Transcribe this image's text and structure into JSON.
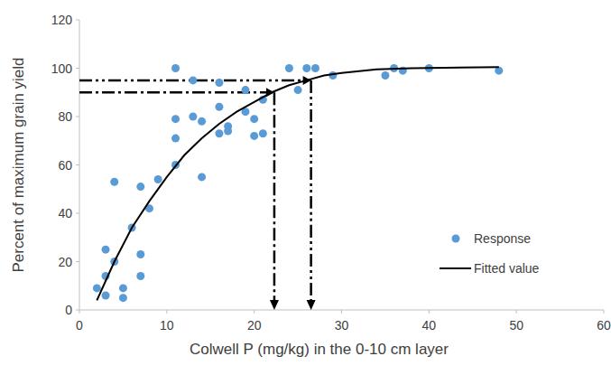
{
  "chart_data": {
    "type": "scatter",
    "x_label": "Colwell P (mg/kg) in the 0-10 cm layer",
    "y_label": "Percent of maximum grain yield",
    "xlim": [
      0,
      60
    ],
    "xticks": [
      0,
      10,
      20,
      30,
      40,
      50,
      60
    ],
    "ylim": [
      0,
      120
    ],
    "yticks": [
      0,
      20,
      40,
      60,
      80,
      100,
      120
    ],
    "grid": false,
    "legend": "lower right",
    "series": [
      {
        "name": "Response",
        "type": "scatter",
        "color": "#5b9bd5",
        "marker": "circle",
        "x": [
          2,
          3,
          3,
          3,
          4,
          4,
          5,
          5,
          6,
          7,
          7,
          7,
          8,
          9,
          11,
          11,
          11,
          11,
          13,
          13,
          14,
          14,
          16,
          16,
          16,
          17,
          17,
          19,
          19,
          20,
          20,
          21,
          21,
          24,
          25,
          26,
          27,
          29,
          35,
          36,
          37,
          40,
          48
        ],
        "values": [
          9,
          25,
          14,
          6,
          20,
          53,
          5,
          9,
          34,
          51,
          23,
          14,
          42,
          54,
          100,
          79,
          71,
          60,
          95,
          80,
          78,
          55,
          94,
          84,
          73,
          76,
          74,
          91,
          82,
          79,
          72,
          87,
          73,
          100,
          91,
          100,
          100,
          97,
          97,
          100,
          99,
          100,
          99
        ]
      },
      {
        "name": "Fitted value",
        "type": "line",
        "color": "#000000",
        "line_style": "solid",
        "x": [
          2,
          4,
          6,
          8,
          10,
          12,
          14,
          16,
          18,
          20,
          22,
          24,
          26,
          28,
          30,
          34,
          38,
          48
        ],
        "values": [
          4,
          20,
          34,
          45,
          55,
          64,
          71,
          77,
          82,
          86,
          90,
          93,
          95,
          97,
          98,
          99.5,
          100,
          100.5
        ]
      }
    ],
    "reference_lines": [
      {
        "x": 22.3,
        "y": 90,
        "line_style": "dash-dot"
      },
      {
        "x": 26.5,
        "y": 95,
        "line_style": "dash-dot-dot"
      }
    ]
  }
}
